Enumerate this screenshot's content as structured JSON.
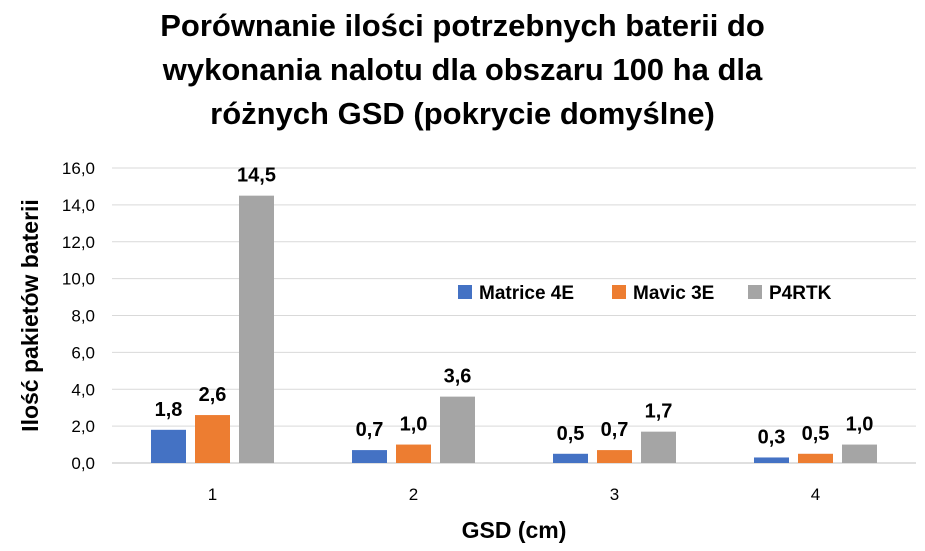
{
  "chart_data": {
    "type": "bar",
    "title_lines": [
      "Porównanie ilości potrzebnych baterii do",
      "wykonania nalotu dla obszaru 100 ha dla",
      "różnych GSD (pokrycie domyślne)"
    ],
    "xlabel": "GSD (cm)",
    "ylabel": "Ilość pakietów baterii",
    "categories": [
      "1",
      "2",
      "3",
      "4"
    ],
    "series": [
      {
        "name": "Matrice 4E",
        "color": "#4472C4",
        "values": [
          1.8,
          0.7,
          0.5,
          0.3
        ],
        "labels": [
          "1,8",
          "0,7",
          "0,5",
          "0,3"
        ]
      },
      {
        "name": "Mavic 3E",
        "color": "#ED7D31",
        "values": [
          2.6,
          1.0,
          0.7,
          0.5
        ],
        "labels": [
          "2,6",
          "1,0",
          "0,7",
          "0,5"
        ]
      },
      {
        "name": "P4RTK",
        "color": "#A5A5A5",
        "values": [
          14.5,
          3.6,
          1.7,
          1.0
        ],
        "labels": [
          "14,5",
          "3,6",
          "1,7",
          "1,0"
        ]
      }
    ],
    "ylim": [
      0,
      16
    ],
    "yticks": [
      0,
      2,
      4,
      6,
      8,
      10,
      12,
      14,
      16
    ],
    "ytick_labels": [
      "0,0",
      "2,0",
      "4,0",
      "6,0",
      "8,0",
      "10,0",
      "12,0",
      "14,0",
      "16,0"
    ],
    "grid": true,
    "legend_position": "right-center"
  }
}
